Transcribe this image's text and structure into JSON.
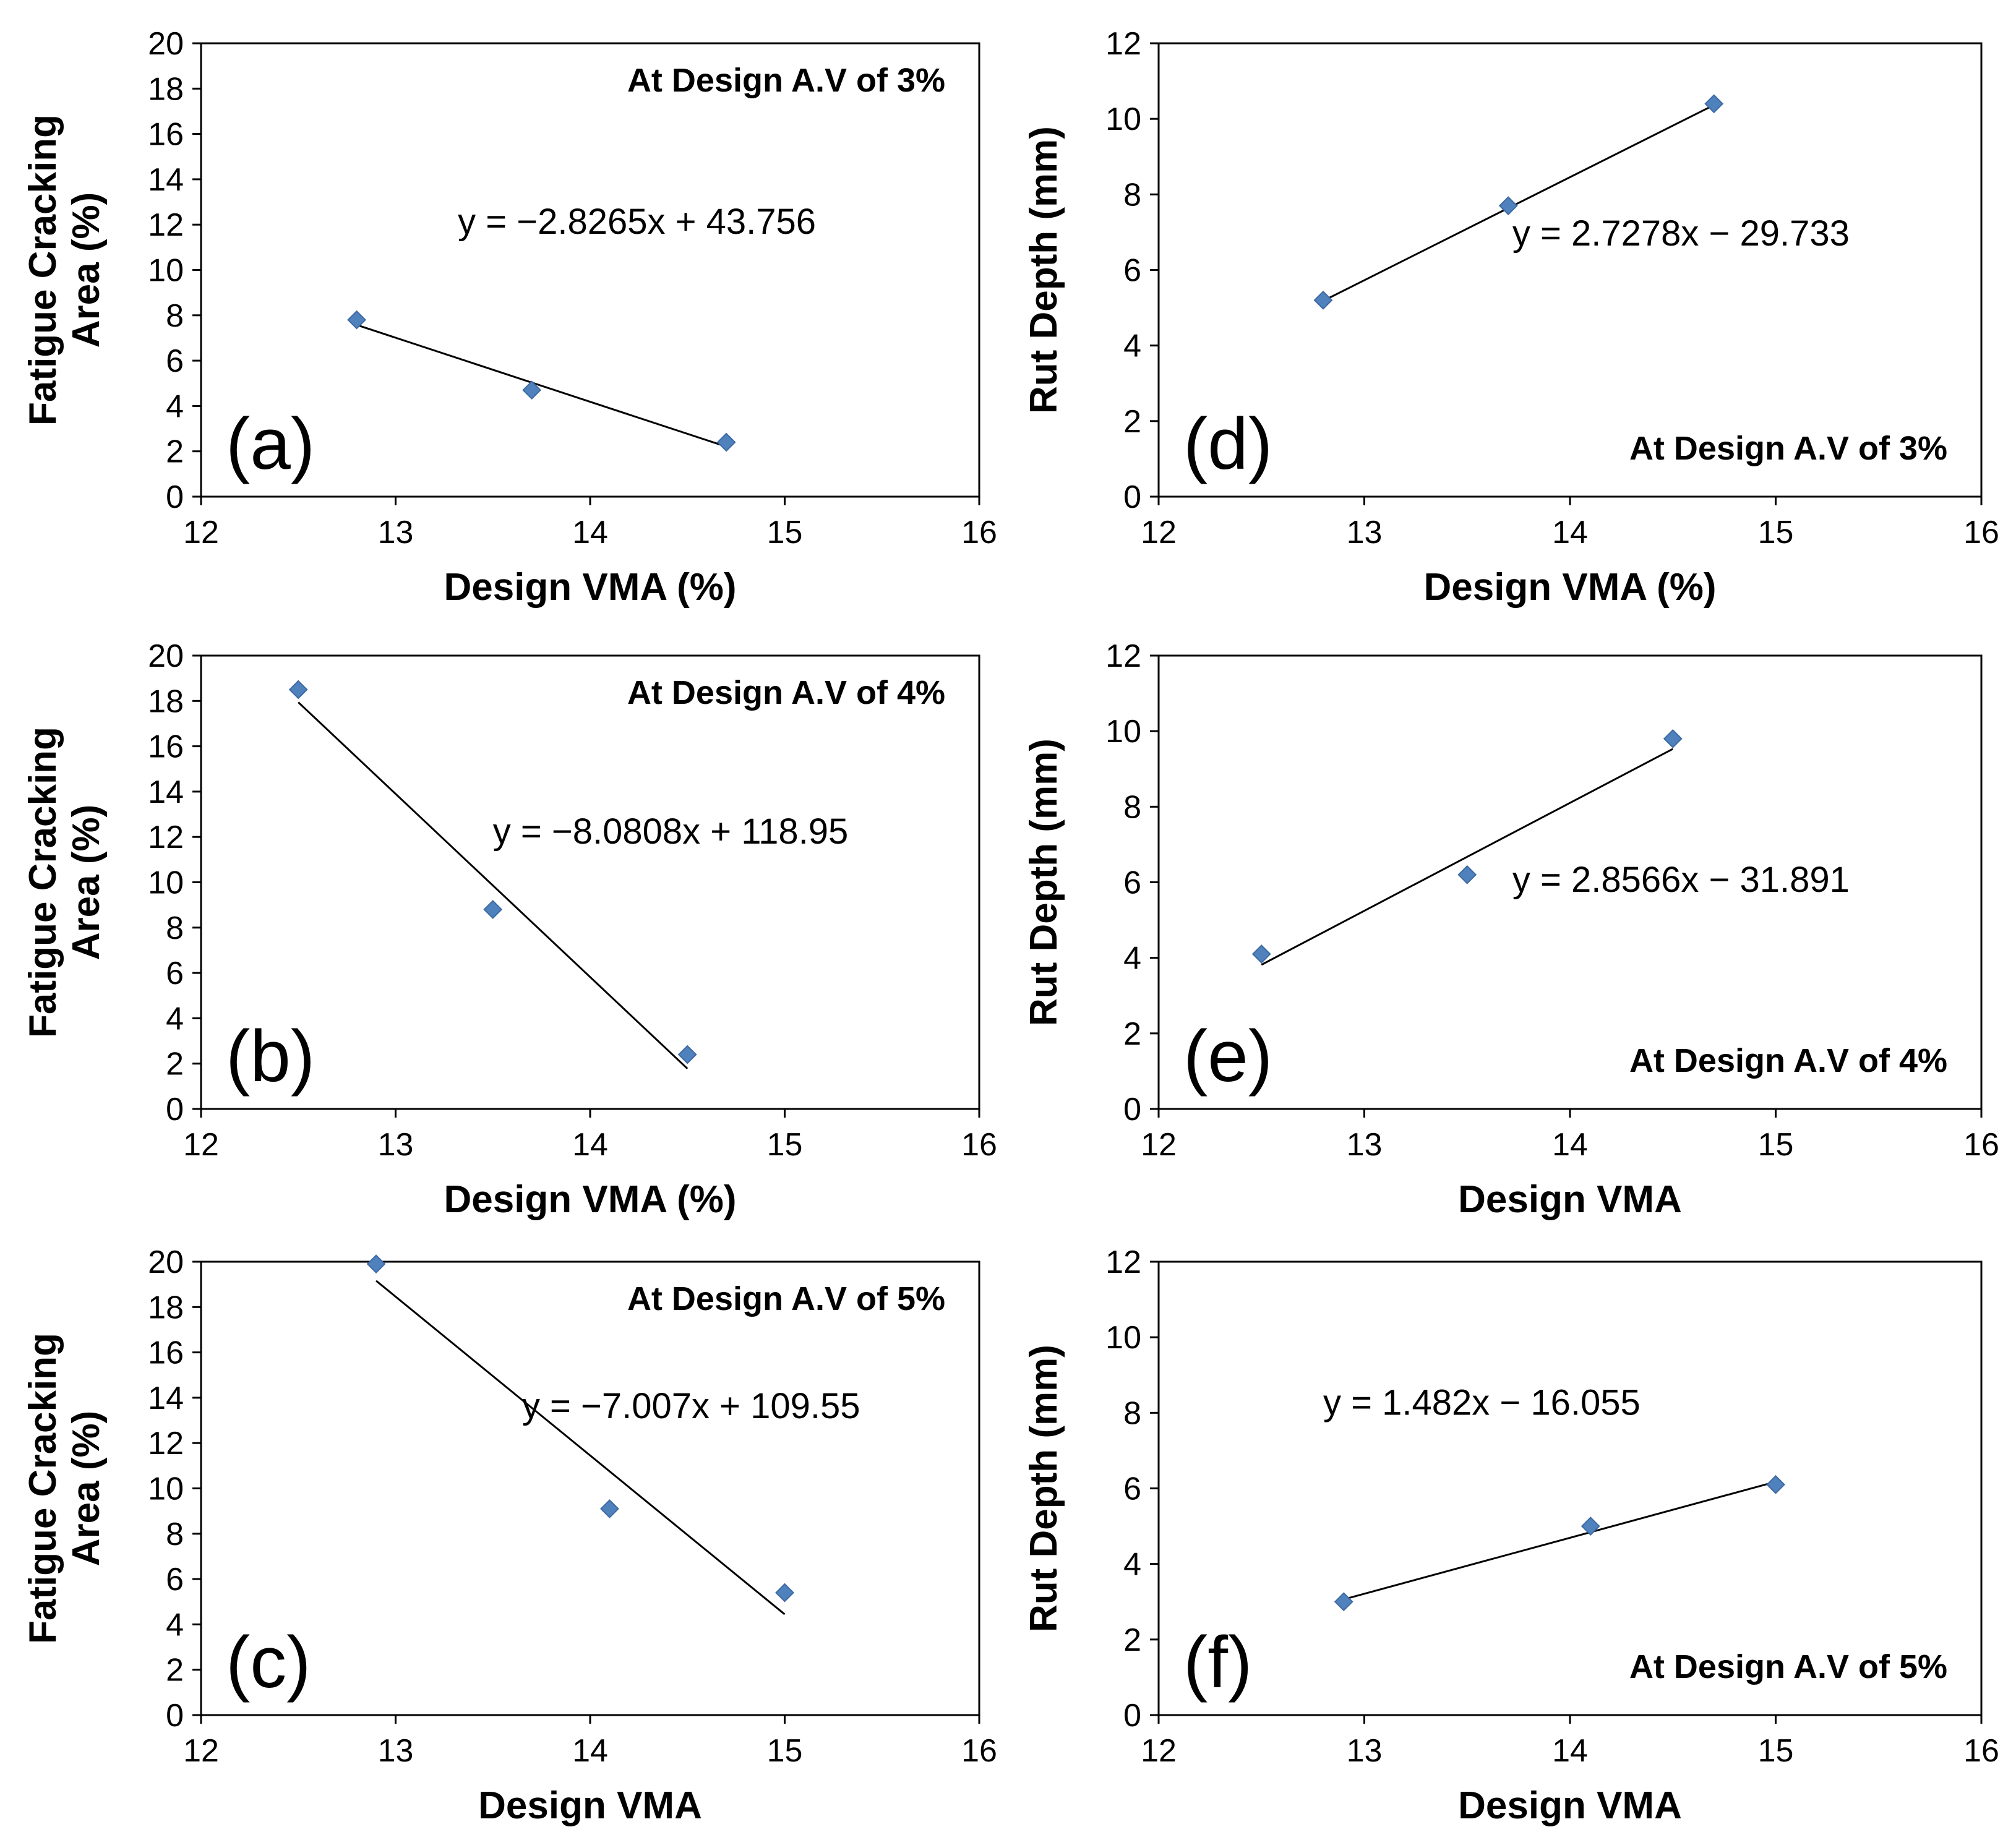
{
  "chart_data": [
    {
      "type": "scatter",
      "panel": "(a)",
      "title": "",
      "xlabel": "Design VMA  (%)",
      "ylabel": [
        "Fatigue Cracking",
        "Area (%)"
      ],
      "xlim": [
        12,
        16
      ],
      "ylim": [
        0,
        20
      ],
      "xticks": [
        "12",
        "13",
        "14",
        "15",
        "16"
      ],
      "yticks": [
        "0",
        "2",
        "4",
        "6",
        "8",
        "10",
        "12",
        "14",
        "16",
        "18",
        "20"
      ],
      "x": [
        12.8,
        13.7,
        14.7
      ],
      "y": [
        7.8,
        4.7,
        2.4
      ],
      "trendline": {
        "slope": -2.8265,
        "intercept": 43.756,
        "x_range": [
          12.8,
          14.7
        ]
      },
      "equation": "y = −2.8265x + 43.756",
      "annotation": "At Design A.V of 3%",
      "annotation_pos": "top-right",
      "color": "#4f81bd"
    },
    {
      "type": "scatter",
      "panel": "(b)",
      "title": "",
      "xlabel": "Design VMA (%)",
      "ylabel": [
        "Fatigue Cracking",
        "Area (%)"
      ],
      "xlim": [
        12,
        16
      ],
      "ylim": [
        0,
        20
      ],
      "xticks": [
        "12",
        "13",
        "14",
        "15",
        "16"
      ],
      "yticks": [
        "0",
        "2",
        "4",
        "6",
        "8",
        "10",
        "12",
        "14",
        "16",
        "18",
        "20"
      ],
      "x": [
        12.5,
        13.5,
        14.5
      ],
      "y": [
        18.5,
        8.8,
        2.4
      ],
      "trendline": {
        "slope": -8.0808,
        "intercept": 118.95,
        "x_range": [
          12.5,
          14.5
        ]
      },
      "equation": "y = −8.0808x + 118.95",
      "annotation": "At Design A.V of 4%",
      "annotation_pos": "top-right",
      "color": "#4f81bd"
    },
    {
      "type": "scatter",
      "panel": "(c)",
      "title": "",
      "xlabel": "Design VMA",
      "ylabel": [
        "Fatigue Cracking",
        "Area (%)"
      ],
      "xlim": [
        12,
        16
      ],
      "ylim": [
        0,
        20
      ],
      "xticks": [
        "12",
        "13",
        "14",
        "15",
        "16"
      ],
      "yticks": [
        "0",
        "2",
        "4",
        "6",
        "8",
        "10",
        "12",
        "14",
        "16",
        "18",
        "20"
      ],
      "x": [
        12.9,
        14.1,
        15.0
      ],
      "y": [
        19.9,
        9.1,
        5.4
      ],
      "trendline": {
        "slope": -7.007,
        "intercept": 109.55,
        "x_range": [
          12.9,
          15.0
        ]
      },
      "equation": "y = −7.007x + 109.55",
      "annotation": "At Design A.V of 5%",
      "annotation_pos": "top-right",
      "color": "#4f81bd"
    },
    {
      "type": "scatter",
      "panel": "(d)",
      "title": "",
      "xlabel": "Design VMA (%)",
      "ylabel": [
        "Rut Depth (mm)"
      ],
      "xlim": [
        12,
        16
      ],
      "ylim": [
        0,
        12
      ],
      "xticks": [
        "12",
        "13",
        "14",
        "15",
        "16"
      ],
      "yticks": [
        "0",
        "2",
        "4",
        "6",
        "8",
        "10",
        "12"
      ],
      "x": [
        12.8,
        13.7,
        14.7
      ],
      "y": [
        5.2,
        7.7,
        10.4
      ],
      "trendline": {
        "slope": 2.7278,
        "intercept": -29.733,
        "x_range": [
          12.8,
          14.7
        ]
      },
      "equation": "y = 2.7278x − 29.733",
      "annotation": "At Design A.V of 3%",
      "annotation_pos": "bottom-right",
      "color": "#4f81bd"
    },
    {
      "type": "scatter",
      "panel": "(e)",
      "title": "",
      "xlabel": "Design VMA",
      "ylabel": [
        "Rut Depth (mm)"
      ],
      "xlim": [
        12,
        16
      ],
      "ylim": [
        0,
        12
      ],
      "xticks": [
        "12",
        "13",
        "14",
        "15",
        "16"
      ],
      "yticks": [
        "0",
        "2",
        "4",
        "6",
        "8",
        "10",
        "12"
      ],
      "x": [
        12.5,
        13.5,
        14.5
      ],
      "y": [
        4.1,
        6.2,
        9.8
      ],
      "trendline": {
        "slope": 2.8566,
        "intercept": -31.891,
        "x_range": [
          12.5,
          14.5
        ]
      },
      "equation": "y = 2.8566x − 31.891",
      "annotation": "At Design A.V of 4%",
      "annotation_pos": "bottom-right",
      "color": "#4f81bd"
    },
    {
      "type": "scatter",
      "panel": "(f)",
      "title": "",
      "xlabel": "Design VMA",
      "ylabel": [
        "Rut Depth (mm)"
      ],
      "xlim": [
        12,
        16
      ],
      "ylim": [
        0,
        12
      ],
      "xticks": [
        "12",
        "13",
        "14",
        "15",
        "16"
      ],
      "yticks": [
        "0",
        "2",
        "4",
        "6",
        "8",
        "10",
        "12"
      ],
      "x": [
        12.9,
        14.1,
        15.0
      ],
      "y": [
        3.0,
        5.0,
        6.1
      ],
      "trendline": {
        "slope": 1.482,
        "intercept": -16.055,
        "x_range": [
          12.9,
          15.0
        ]
      },
      "equation": "y = 1.482x − 16.055",
      "annotation": "At Design A.V of 5%",
      "annotation_pos": "bottom-right",
      "color": "#4f81bd"
    }
  ]
}
